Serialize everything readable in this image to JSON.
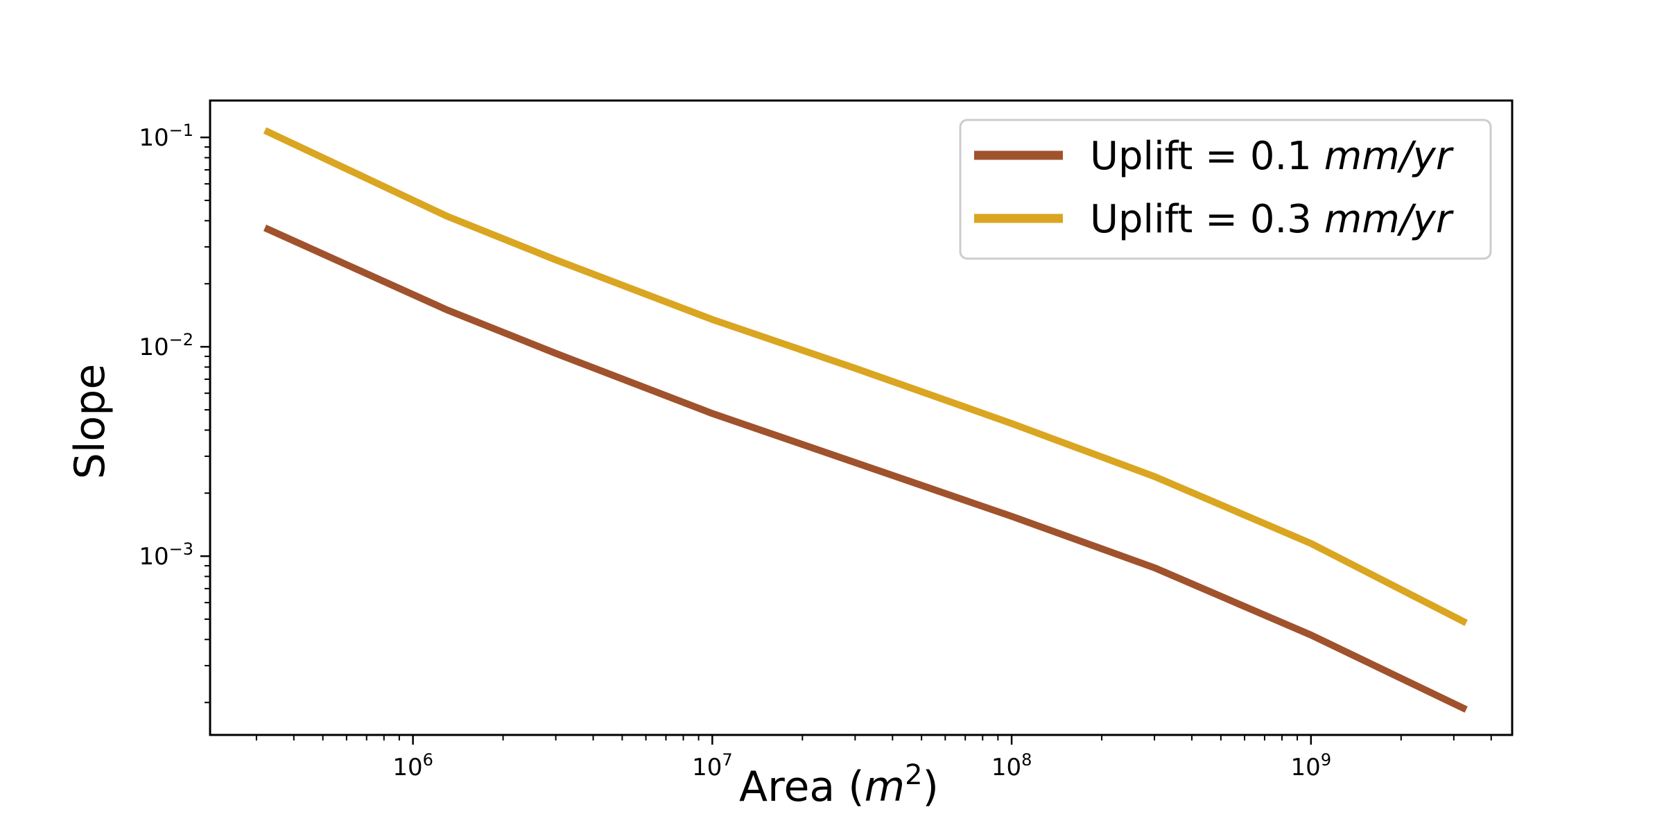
{
  "chart_data": {
    "type": "line",
    "xlabel_main": "Area (",
    "xlabel_var": "m",
    "xlabel_sup": "2",
    "xlabel_close": ")",
    "ylabel": "Slope",
    "xscale": "log",
    "yscale": "log",
    "xlim": [
      210000,
      4700000000
    ],
    "ylim": [
      0.00014,
      0.15
    ],
    "x_tick_labels": [
      {
        "base": "10",
        "exp": "6",
        "value": 1000000
      },
      {
        "base": "10",
        "exp": "7",
        "value": 10000000
      },
      {
        "base": "10",
        "exp": "8",
        "value": 100000000
      },
      {
        "base": "10",
        "exp": "9",
        "value": 1000000000
      }
    ],
    "y_tick_labels": [
      {
        "base": "10",
        "exp": "−1",
        "value": 0.1
      },
      {
        "base": "10",
        "exp": "−2",
        "value": 0.01
      },
      {
        "base": "10",
        "exp": "−3",
        "value": 0.001
      }
    ],
    "grid": false,
    "legend_position": "top-right",
    "series": [
      {
        "name_prefix": "Uplift = 0.1 ",
        "name_units": "mm/yr",
        "color": "#A0522D",
        "x": [
          320000,
          1300000,
          3000000,
          10000000,
          30000000,
          100000000,
          300000000,
          1000000000,
          3300000000
        ],
        "y": [
          0.037,
          0.015,
          0.0093,
          0.0048,
          0.0028,
          0.00155,
          0.00088,
          0.00042,
          0.000185
        ]
      },
      {
        "name_prefix": "Uplift = 0.3 ",
        "name_units": "mm/yr",
        "color": "#DAA520",
        "x": [
          320000,
          1300000,
          3000000,
          10000000,
          30000000,
          100000000,
          300000000,
          1000000000,
          3300000000
        ],
        "y": [
          0.108,
          0.042,
          0.026,
          0.0135,
          0.0079,
          0.0043,
          0.0024,
          0.00115,
          0.00048
        ]
      }
    ]
  }
}
